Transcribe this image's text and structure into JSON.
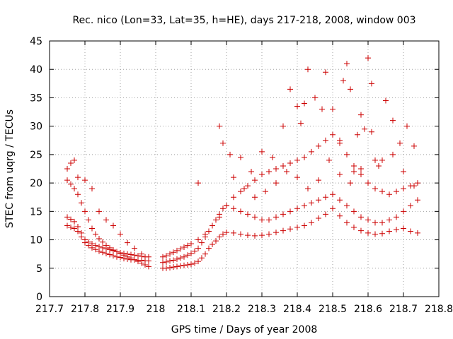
{
  "chart_data": {
    "type": "scatter",
    "title": "Rec. nico (Lon=33, Lat=35, h=HE), days 217-218, 2008, window 003",
    "xlabel": "GPS time / Days of year 2008",
    "ylabel": "STEC from uqrg / TECUs",
    "xlim": [
      217.7,
      218.8
    ],
    "ylim": [
      0,
      45
    ],
    "xticks": [
      "217.7",
      "217.8",
      "217.9",
      "218",
      "218.1",
      "218.2",
      "218.3",
      "218.4",
      "218.5",
      "218.6",
      "218.7",
      "218.8"
    ],
    "yticks": [
      "0",
      "5",
      "10",
      "15",
      "20",
      "25",
      "30",
      "35",
      "40",
      "45"
    ],
    "grid": true,
    "marker": "plus",
    "color": "#cc0000",
    "series": [
      {
        "x": [
          217.75,
          217.76,
          217.77,
          217.78,
          217.79,
          217.8,
          217.81,
          217.82,
          217.83,
          217.84,
          217.85,
          217.86,
          217.87,
          217.88,
          217.89,
          217.9,
          217.91,
          217.92,
          217.93,
          217.94,
          217.95,
          217.96,
          217.97,
          217.98
        ],
        "y": [
          12.5,
          12.2,
          12.0,
          11.5,
          10.5,
          9.5,
          9.0,
          8.6,
          8.3,
          8.0,
          7.8,
          7.6,
          7.4,
          7.2,
          7.0,
          6.9,
          6.7,
          6.6,
          6.5,
          6.5,
          6.4,
          6.4,
          6.3,
          6.3
        ]
      },
      {
        "x": [
          217.75,
          217.76,
          217.77,
          217.78,
          217.79,
          217.8,
          217.81,
          217.82,
          217.83,
          217.84,
          217.85,
          217.86,
          217.87,
          217.88,
          217.89,
          217.9,
          217.91,
          217.92,
          217.93,
          217.94,
          217.95,
          217.96,
          217.97,
          217.98
        ],
        "y": [
          14.0,
          13.6,
          13.2,
          12.3,
          11.2,
          10.0,
          9.6,
          9.3,
          9.0,
          8.8,
          8.6,
          8.4,
          8.3,
          8.1,
          7.9,
          7.7,
          7.6,
          7.5,
          7.4,
          7.3,
          7.2,
          7.1,
          7.0,
          7.0
        ]
      },
      {
        "x": [
          217.75,
          217.76,
          217.77,
          217.78,
          217.79,
          217.8,
          217.81,
          217.82,
          217.83,
          217.84,
          217.85,
          217.86,
          217.87,
          217.88,
          217.89,
          217.9,
          217.91,
          217.92,
          217.93,
          217.94,
          217.95,
          217.96,
          217.97,
          217.98
        ],
        "y": [
          20.5,
          19.8,
          19.0,
          18.0,
          16.5,
          15.0,
          13.5,
          12.0,
          11.0,
          10.2,
          9.6,
          9.0,
          8.6,
          8.2,
          7.9,
          7.6,
          7.3,
          7.0,
          6.8,
          6.5,
          6.2,
          5.9,
          5.6,
          5.3
        ]
      },
      {
        "x": [
          217.75,
          217.76,
          217.77,
          217.78,
          217.8,
          217.82,
          217.84,
          217.86,
          217.88,
          217.9,
          217.92,
          217.94,
          217.96
        ],
        "y": [
          22.5,
          23.5,
          24.0,
          21.0,
          20.5,
          19.0,
          15.0,
          13.5,
          12.5,
          11.0,
          9.5,
          8.5,
          7.5
        ]
      },
      {
        "x": [
          218.02,
          218.03,
          218.04,
          218.05,
          218.06,
          218.07,
          218.08,
          218.09,
          218.1,
          218.11,
          218.12,
          218.13,
          218.14,
          218.15,
          218.16,
          218.17,
          218.18,
          218.19,
          218.2,
          218.22,
          218.24,
          218.26,
          218.28,
          218.3,
          218.32,
          218.34,
          218.36,
          218.38,
          218.4,
          218.42,
          218.44,
          218.46,
          218.48,
          218.5,
          218.52,
          218.54,
          218.56,
          218.58,
          218.6,
          218.62,
          218.64,
          218.66,
          218.68,
          218.7,
          218.72,
          218.74
        ],
        "y": [
          5.0,
          5.0,
          5.1,
          5.2,
          5.3,
          5.4,
          5.5,
          5.6,
          5.7,
          5.9,
          6.2,
          6.8,
          7.5,
          8.5,
          9.2,
          9.8,
          10.5,
          11.0,
          11.3,
          11.2,
          11.0,
          10.8,
          10.7,
          10.8,
          11.0,
          11.3,
          11.6,
          11.9,
          12.2,
          12.5,
          13.0,
          13.8,
          14.5,
          15.5,
          14.2,
          13.0,
          12.2,
          11.6,
          11.2,
          11.0,
          11.1,
          11.5,
          11.8,
          12.0,
          11.5,
          11.2
        ]
      },
      {
        "x": [
          218.02,
          218.03,
          218.04,
          218.05,
          218.06,
          218.07,
          218.08,
          218.09,
          218.1,
          218.11,
          218.12,
          218.13,
          218.14,
          218.15,
          218.16,
          218.17,
          218.18,
          218.19,
          218.2,
          218.22,
          218.24,
          218.26,
          218.28,
          218.3,
          218.32,
          218.34,
          218.36,
          218.38,
          218.4,
          218.42,
          218.44,
          218.46,
          218.48,
          218.5,
          218.52,
          218.54,
          218.56,
          218.58,
          218.6,
          218.62,
          218.64,
          218.66,
          218.68,
          218.7,
          218.72,
          218.74
        ],
        "y": [
          6.0,
          6.1,
          6.3,
          6.4,
          6.6,
          6.8,
          7.0,
          7.3,
          7.6,
          8.0,
          8.5,
          9.5,
          10.5,
          11.5,
          12.5,
          13.5,
          14.5,
          15.5,
          16.0,
          15.5,
          15.0,
          14.5,
          14.0,
          13.5,
          13.5,
          14.0,
          14.5,
          15.0,
          15.5,
          16.0,
          16.5,
          17.0,
          17.5,
          18.0,
          17.0,
          16.0,
          15.0,
          14.0,
          13.5,
          13.0,
          13.0,
          13.5,
          14.0,
          15.0,
          16.0,
          17.0
        ]
      },
      {
        "x": [
          218.02,
          218.03,
          218.04,
          218.05,
          218.06,
          218.07,
          218.08,
          218.09,
          218.1,
          218.12,
          218.14,
          218.16,
          218.18,
          218.2,
          218.22,
          218.24,
          218.26,
          218.28,
          218.3,
          218.32,
          218.34,
          218.36,
          218.38,
          218.4,
          218.42,
          218.44,
          218.46,
          218.48,
          218.5,
          218.52,
          218.54,
          218.56,
          218.58,
          218.6,
          218.62,
          218.64,
          218.66,
          218.68,
          218.7,
          218.72,
          218.74
        ],
        "y": [
          7.0,
          7.2,
          7.5,
          7.8,
          8.1,
          8.4,
          8.7,
          9.0,
          9.3,
          10.0,
          11.0,
          12.5,
          14.0,
          16.0,
          17.5,
          18.5,
          19.5,
          20.5,
          21.5,
          22.0,
          22.5,
          23.0,
          23.5,
          24.0,
          24.5,
          25.5,
          26.5,
          27.5,
          28.5,
          27.0,
          25.0,
          23.0,
          21.5,
          20.0,
          19.0,
          18.5,
          18.0,
          18.5,
          19.0,
          19.5,
          20.0
        ]
      },
      {
        "x": [
          218.18,
          218.21,
          218.24,
          218.27,
          218.3,
          218.33,
          218.36,
          218.38,
          218.4,
          218.41,
          218.42,
          218.43,
          218.45,
          218.47,
          218.48,
          218.5,
          218.52,
          218.53,
          218.54,
          218.55,
          218.56,
          218.57,
          218.58,
          218.59,
          218.6,
          218.61,
          218.62,
          218.63,
          218.65,
          218.67,
          218.69,
          218.71,
          218.73
        ],
        "y": [
          30.0,
          25.0,
          24.5,
          22.0,
          25.5,
          24.5,
          30.0,
          36.5,
          33.5,
          30.5,
          34.0,
          40.0,
          35.0,
          33.0,
          39.5,
          33.0,
          27.5,
          38.0,
          41.0,
          36.5,
          22.0,
          28.5,
          32.0,
          29.5,
          42.0,
          37.5,
          24.0,
          23.0,
          34.5,
          31.0,
          27.0,
          30.0,
          26.5
        ]
      },
      {
        "x": [
          218.12,
          218.19,
          218.22,
          218.25,
          218.28,
          218.31,
          218.34,
          218.37,
          218.4,
          218.43,
          218.46,
          218.49,
          218.52,
          218.55,
          218.58,
          218.61,
          218.64,
          218.67,
          218.7,
          218.73
        ],
        "y": [
          20.0,
          27.0,
          21.0,
          19.0,
          17.5,
          18.5,
          20.0,
          22.0,
          21.0,
          19.0,
          20.5,
          24.0,
          21.5,
          20.0,
          22.5,
          29.0,
          24.0,
          25.0,
          22.0,
          19.5
        ]
      }
    ]
  }
}
